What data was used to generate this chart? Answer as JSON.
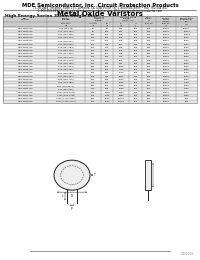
{
  "company": "MDE Semiconductor, Inc. Circuit Protection Products",
  "address1": "75-3B Data Terrance, Suite 175, La Selva, Ca, USA 95038 Tel: 1-800-MDE-8899 • Fax: 760-564-847",
  "address2": "1-800-858-4897 Email: sales@mdesemiconductor.com Web: www.mdesemiconductor.com",
  "title": "Metal Oxide Varistors",
  "subtitle": "High Energy Series 32mm Single Disc",
  "rows": [
    [
      "MDE-32D101K",
      "100 (95-105)",
      "60",
      "85",
      "340",
      "200",
      "150",
      "20000",
      "20000"
    ],
    [
      "MDE-32D121K",
      "120 (114-126)",
      "75",
      "100",
      "395",
      "200",
      "195",
      "20000",
      "15000"
    ],
    [
      "MDE-32D151K",
      "150 (143-158)",
      "130",
      "170",
      "490",
      "200",
      "240",
      "20000",
      "12000"
    ],
    [
      "MDE-32D201K",
      "200 (190-210)",
      "150",
      "200",
      "595",
      "200",
      "295",
      "20000",
      "8500"
    ],
    [
      "MDE-32D221K",
      "220 (209-231)",
      "175",
      "250",
      "465",
      "200",
      "350",
      "20000",
      "8000"
    ],
    [
      "MDE-32D241K",
      "240 (228-252)",
      "200",
      "275",
      "500",
      "200",
      "375",
      "20000",
      "7500"
    ],
    [
      "MDE-32D271K",
      "270 (257-284)",
      "200",
      "275",
      "590",
      "200",
      "395",
      "20000",
      "6500"
    ],
    [
      "MDE-32D301K",
      "300 (285-315)",
      "250",
      "354",
      "650",
      "200",
      "450",
      "20000",
      "6000"
    ],
    [
      "MDE-32D321K",
      "320 (304-336)",
      "260",
      "350",
      "710",
      "200",
      "380",
      "20000",
      "5700"
    ],
    [
      "MDE-32D361K",
      "360 (342-378)",
      "300",
      "385",
      "775",
      "200",
      "460",
      "20000",
      "5100"
    ],
    [
      "MDE-32D391K",
      "390 (371-410)",
      "320",
      "440",
      "850",
      "200",
      "485",
      "20000",
      "4700"
    ],
    [
      "MDE-32D431K",
      "430 (409-452)",
      "350",
      "485",
      "940",
      "200",
      "540",
      "20000",
      "4300"
    ],
    [
      "MDE-32D471K",
      "470 (447-494)",
      "385",
      "540",
      "1025",
      "200",
      "560",
      "20000",
      "4000"
    ],
    [
      "MDE-32D511K",
      "510 (485-536)",
      "420",
      "585",
      "1120",
      "200",
      "620",
      "20000",
      "3800"
    ],
    [
      "MDE-32D561K",
      "560 (532-588)",
      "460",
      "640",
      "1240",
      "200",
      "680",
      "20000",
      "3500"
    ],
    [
      "MDE-32D621K",
      "620 (589-651)",
      "510",
      "710",
      "1365",
      "200",
      "700",
      "20000",
      "3200"
    ],
    [
      "MDE-32D681K",
      "680 (648-712)",
      "560",
      "795",
      "1500",
      "200",
      "730",
      "20000",
      "2900"
    ],
    [
      "MDE-32D751K",
      "750 (713-788)",
      "625",
      "875",
      "1650",
      "200",
      "750",
      "20000",
      "2700"
    ],
    [
      "MDE-32D781K",
      "820 (779-861+)",
      "680",
      "745",
      "1800",
      "200",
      "800",
      "20000",
      "2500"
    ],
    [
      "MDE-32D911K",
      "910 (865-956)",
      "745",
      "795",
      "2000",
      "200",
      "850",
      "20000",
      "2100"
    ],
    [
      "MDE-32D102K",
      "1000 (950-1050)",
      "830",
      "1620",
      "2400",
      "200",
      "980",
      "20000",
      "1900"
    ],
    [
      "MDE-32D112K",
      "1100 (900-1155)",
      "625",
      "1625",
      "2850",
      "200",
      "984",
      "20000",
      "1400"
    ],
    [
      "MDE-32D122K",
      "1200 (1140-1260)",
      "700",
      "1600",
      "14700",
      "200",
      "750",
      "20000",
      "694"
    ],
    [
      "MDE-32D152K",
      "1500 (1425-1575)",
      "750",
      "1000",
      "19725",
      "200",
      "750",
      "20000",
      "284"
    ]
  ],
  "bg_color": "#ffffff",
  "header_bg": "#cccccc",
  "alt_row_bg": "#e4e4e4",
  "border_color": "#666666",
  "text_color": "#000000",
  "part_number": "1932002"
}
